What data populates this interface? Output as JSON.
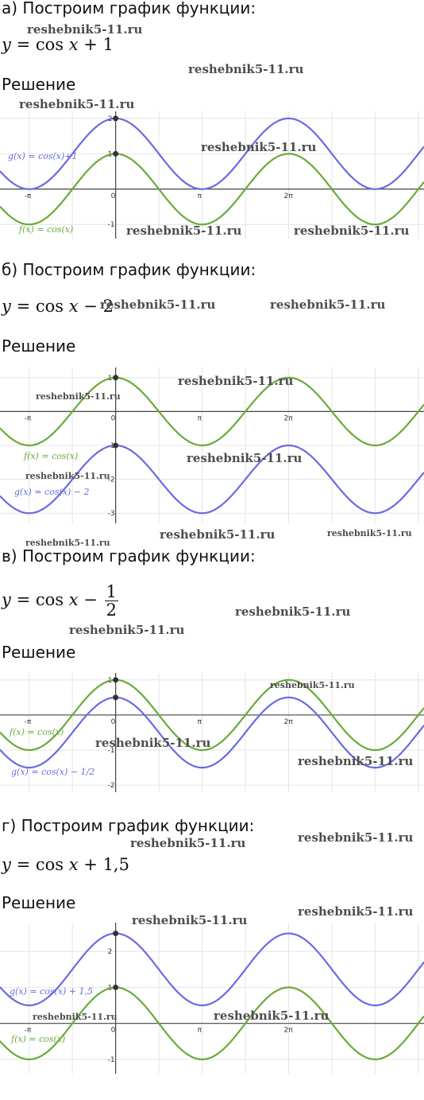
{
  "watermark": "reshebnik5-11.ru",
  "parts": [
    {
      "heading": "а) Построим график функции:",
      "formula": {
        "lhs": "y",
        "eq": "=",
        "func": "cos",
        "var": "x",
        "op": "+",
        "const": "1"
      },
      "solution_label": "Решение",
      "chart_data": {
        "type": "line",
        "x_ticks": [
          "-π",
          "0",
          "π",
          "2π"
        ],
        "y_ticks": [
          "2",
          "1",
          "-1"
        ],
        "xlim": [
          -4.2,
          11.2
        ],
        "ylim": [
          -1.4,
          2.2
        ],
        "series": [
          {
            "name": "g(x) = cos(x)+1",
            "color": "#6a6ae0",
            "shift": 1
          },
          {
            "name": "f(x) = cos(x)",
            "color": "#6aaa3a",
            "shift": 0
          }
        ],
        "points": [
          [
            0,
            2
          ],
          [
            0,
            1
          ]
        ]
      }
    },
    {
      "heading": "б) Построим график функции:",
      "formula": {
        "lhs": "y",
        "eq": "=",
        "func": "cos",
        "var": "x",
        "op": "−",
        "const": "2"
      },
      "solution_label": "Решение",
      "chart_data": {
        "type": "line",
        "x_ticks": [
          "-π",
          "0",
          "π",
          "2π"
        ],
        "y_ticks": [
          "1",
          "-1",
          "-2",
          "-3"
        ],
        "xlim": [
          -4.2,
          11.2
        ],
        "ylim": [
          -3.3,
          1.3
        ],
        "series": [
          {
            "name": "f(x) = cos(x)",
            "color": "#6aaa3a",
            "shift": 0
          },
          {
            "name": "g(x) = cos(x) − 2",
            "color": "#6a6ae0",
            "shift": -2
          }
        ],
        "points": [
          [
            0,
            1
          ],
          [
            0,
            -1
          ]
        ]
      }
    },
    {
      "heading": "в) Построим график функции:",
      "formula": {
        "lhs": "y",
        "eq": "=",
        "func": "cos",
        "var": "x",
        "op": "−",
        "frac_num": "1",
        "frac_den": "2"
      },
      "solution_label": "Решение",
      "chart_data": {
        "type": "line",
        "x_ticks": [
          "-π",
          "0",
          "π",
          "2π"
        ],
        "y_ticks": [
          "1",
          "-1",
          "-2"
        ],
        "xlim": [
          -4.2,
          11.2
        ],
        "ylim": [
          -2.2,
          1.2
        ],
        "series": [
          {
            "name": "f(x) = cos(x)",
            "color": "#6aaa3a",
            "shift": 0
          },
          {
            "name": "g(x) = cos(x) − 1/2",
            "color": "#6a6ae0",
            "shift": -0.5
          }
        ],
        "points": [
          [
            0,
            1
          ],
          [
            0,
            0.5
          ]
        ]
      }
    },
    {
      "heading": "г) Построим график функции:",
      "formula": {
        "lhs": "y",
        "eq": "=",
        "func": "cos",
        "var": "x",
        "op": "+",
        "const": "1,5"
      },
      "solution_label": "Решение",
      "chart_data": {
        "type": "line",
        "x_ticks": [
          "-π",
          "0",
          "π",
          "2π"
        ],
        "y_ticks": [
          "2",
          "1",
          "-1"
        ],
        "xlim": [
          -4.2,
          11.2
        ],
        "ylim": [
          -1.4,
          2.8
        ],
        "series": [
          {
            "name": "g(x) = cos(x) + 1,5",
            "color": "#6a6ae0",
            "shift": 1.5
          },
          {
            "name": "f(x) = cos(x)",
            "color": "#6aaa3a",
            "shift": 0
          }
        ],
        "points": [
          [
            0,
            2.5
          ],
          [
            0,
            1
          ]
        ]
      }
    }
  ]
}
